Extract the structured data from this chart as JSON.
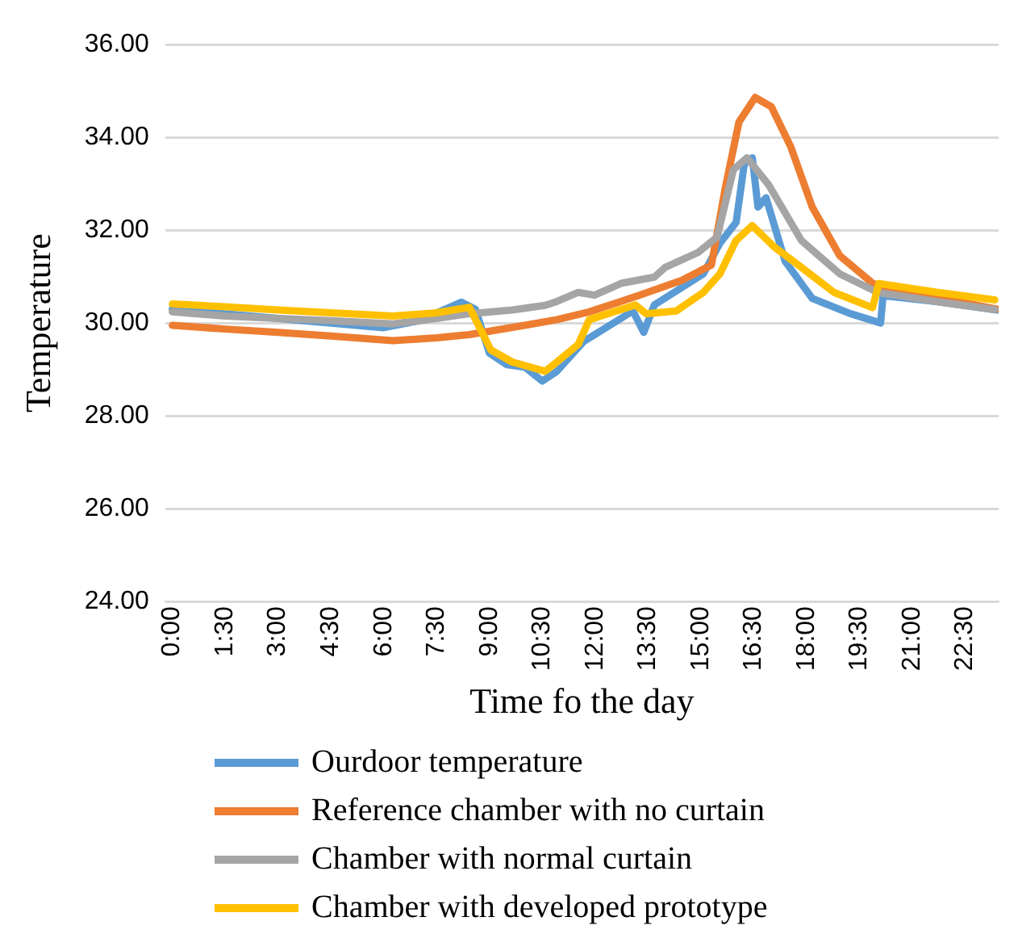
{
  "chart_data": {
    "type": "line",
    "xlabel": "Time fo the day",
    "ylabel": "Temperature",
    "xlim": [
      -0.2,
      23.45
    ],
    "xticks": [
      {
        "value": 0,
        "label": "0:00"
      },
      {
        "value": 1.5,
        "label": "1:30"
      },
      {
        "value": 3,
        "label": "3:00"
      },
      {
        "value": 4.5,
        "label": "4:30"
      },
      {
        "value": 6,
        "label": "6:00"
      },
      {
        "value": 7.5,
        "label": "7:30"
      },
      {
        "value": 9,
        "label": "9:00"
      },
      {
        "value": 10.5,
        "label": "10:30"
      },
      {
        "value": 12,
        "label": "12:00"
      },
      {
        "value": 13.5,
        "label": "13:30"
      },
      {
        "value": 15,
        "label": "15:00"
      },
      {
        "value": 16.5,
        "label": "16:30"
      },
      {
        "value": 18,
        "label": "18:00"
      },
      {
        "value": 19.5,
        "label": "19:30"
      },
      {
        "value": 21,
        "label": "21:00"
      },
      {
        "value": 22.5,
        "label": "22:30"
      }
    ],
    "ylim": [
      24,
      36
    ],
    "yticks": [
      {
        "value": 24,
        "label": "24.00"
      },
      {
        "value": 26,
        "label": "26.00"
      },
      {
        "value": 28,
        "label": "28.00"
      },
      {
        "value": 30,
        "label": "30.00"
      },
      {
        "value": 32,
        "label": "32.00"
      },
      {
        "value": 34,
        "label": "34.00"
      },
      {
        "value": 36,
        "label": "36.00"
      }
    ],
    "grid": "y",
    "legend": "bottom",
    "marker": "none",
    "line_style": "solid",
    "series": [
      {
        "name": "Ourdoor temperature",
        "color": "#5b9bd5",
        "x": [
          0,
          1.5,
          3,
          4.5,
          6,
          7,
          8.2,
          8.6,
          9.0,
          9.5,
          10.0,
          10.5,
          10.9,
          11.67,
          13.07,
          13.38,
          13.68,
          15.07,
          15.54,
          16.0,
          16.23,
          16.46,
          16.62,
          16.85,
          17.39,
          18.16,
          19.25,
          20.1,
          20.17,
          21.72,
          23.4
        ],
        "values": [
          30.3,
          30.2,
          30.1,
          30.0,
          29.9,
          30.05,
          30.45,
          30.3,
          29.35,
          29.1,
          29.05,
          28.75,
          28.95,
          29.6,
          30.26,
          29.8,
          30.39,
          31.06,
          31.72,
          32.17,
          33.42,
          33.56,
          32.5,
          32.7,
          31.33,
          30.53,
          30.2,
          30.0,
          30.59,
          30.46,
          30.28
        ]
      },
      {
        "name": "Reference chamber with no curtain",
        "color": "#ed7d31",
        "x": [
          0,
          1.5,
          3,
          4.5,
          6.26,
          7.5,
          8.43,
          10,
          10.9,
          11.83,
          13.22,
          14.46,
          15.3,
          15.69,
          16.08,
          16.54,
          17.0,
          17.55,
          18.16,
          18.94,
          19.87,
          20.1,
          21.72,
          23.4
        ],
        "values": [
          29.95,
          29.87,
          29.8,
          29.72,
          29.62,
          29.68,
          29.75,
          29.95,
          30.07,
          30.24,
          30.59,
          30.92,
          31.25,
          32.9,
          34.33,
          34.86,
          34.66,
          33.8,
          32.5,
          31.45,
          30.86,
          30.8,
          30.55,
          30.3
        ]
      },
      {
        "name": "Chamber with normal curtain",
        "color": "#a5a5a5",
        "x": [
          0,
          1.5,
          3,
          4.5,
          6.26,
          7.5,
          8.43,
          9.65,
          10.58,
          10.9,
          11.52,
          11.98,
          12.76,
          13.68,
          13.99,
          14.92,
          15.46,
          15.92,
          16.31,
          16.93,
          17.85,
          18.94,
          20.02,
          21.72,
          23.34
        ],
        "values": [
          30.24,
          30.15,
          30.1,
          30.05,
          29.98,
          30.1,
          30.2,
          30.28,
          30.38,
          30.46,
          30.66,
          30.6,
          30.86,
          30.99,
          31.2,
          31.52,
          31.85,
          33.3,
          33.56,
          32.97,
          31.78,
          31.06,
          30.66,
          30.46,
          30.29
        ]
      },
      {
        "name": "Chamber with developed prototype",
        "color": "#ffc000",
        "x": [
          0,
          1.5,
          3,
          4.5,
          6.26,
          7.5,
          8.43,
          9.04,
          9.65,
          10.58,
          10.9,
          11.52,
          11.83,
          13.14,
          13.45,
          14.3,
          15.07,
          15.54,
          16.0,
          16.46,
          17.08,
          17.85,
          18.78,
          19.87,
          20.05,
          21.72,
          23.34
        ],
        "values": [
          30.41,
          30.35,
          30.28,
          30.22,
          30.15,
          30.22,
          30.34,
          29.42,
          29.16,
          28.96,
          29.15,
          29.54,
          30.07,
          30.39,
          30.2,
          30.26,
          30.66,
          31.06,
          31.78,
          32.1,
          31.64,
          31.2,
          30.66,
          30.33,
          30.85,
          30.66,
          30.5
        ]
      }
    ]
  }
}
